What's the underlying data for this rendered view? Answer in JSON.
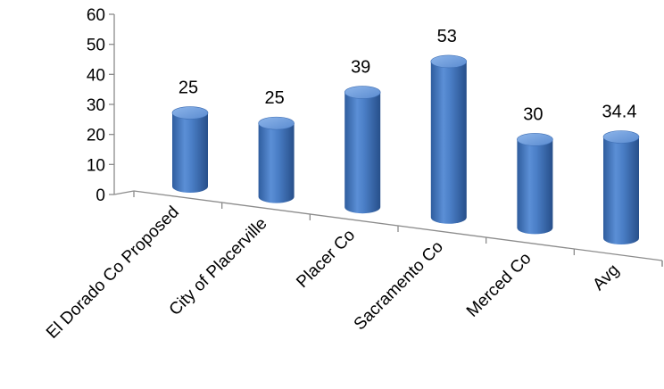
{
  "chart_data": {
    "type": "bar",
    "style": "3d-cylinder",
    "categories": [
      "El Dorado Co Proposed",
      "City of Placerville",
      "Placer Co",
      "Sacramento Co",
      "Merced Co",
      "Avg"
    ],
    "values": [
      25,
      25,
      39,
      53,
      30,
      34.4
    ],
    "data_labels": [
      "25",
      "25",
      "39",
      "53",
      "30",
      "34.4"
    ],
    "y_ticks": [
      "0",
      "10",
      "20",
      "30",
      "40",
      "50",
      "60"
    ],
    "ylim": [
      0,
      60
    ],
    "grid": false,
    "legend": "none",
    "colors": {
      "bar": "#4a7ec6",
      "bar_dark": "#2c5a9a",
      "bar_top": "#6f9ddc",
      "axis": "#8c8c8c"
    }
  }
}
